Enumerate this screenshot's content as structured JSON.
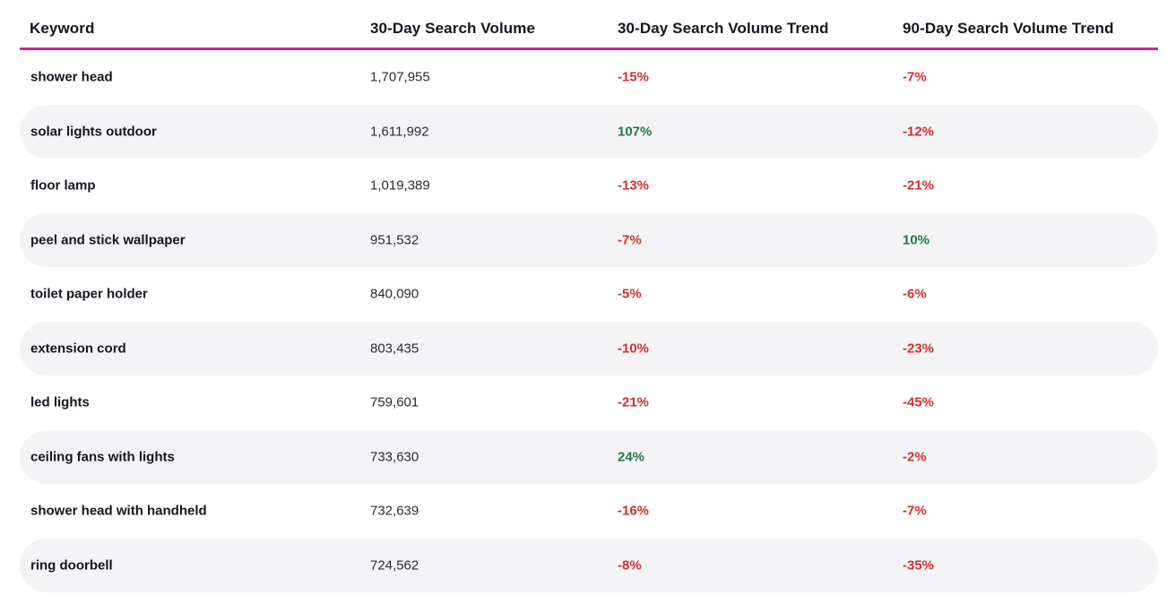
{
  "colors": {
    "header_rule": "#d6268e",
    "negative": "#d32f2f",
    "positive": "#1f7a4d",
    "row_stripe": "#f4f4f6"
  },
  "table": {
    "headers": {
      "keyword": "Keyword",
      "volume": "30-Day Search Volume",
      "trend30": "30-Day Search Volume Trend",
      "trend90": "90-Day Search Volume Trend"
    },
    "rows": [
      {
        "keyword": "shower head",
        "volume": "1,707,955",
        "trend30": "-15%",
        "trend90": "-7%"
      },
      {
        "keyword": "solar lights outdoor",
        "volume": "1,611,992",
        "trend30": "107%",
        "trend90": "-12%"
      },
      {
        "keyword": "floor lamp",
        "volume": "1,019,389",
        "trend30": "-13%",
        "trend90": "-21%"
      },
      {
        "keyword": "peel and stick wallpaper",
        "volume": "951,532",
        "trend30": "-7%",
        "trend90": "10%"
      },
      {
        "keyword": "toilet paper holder",
        "volume": "840,090",
        "trend30": "-5%",
        "trend90": "-6%"
      },
      {
        "keyword": "extension cord",
        "volume": "803,435",
        "trend30": "-10%",
        "trend90": "-23%"
      },
      {
        "keyword": "led lights",
        "volume": "759,601",
        "trend30": "-21%",
        "trend90": "-45%"
      },
      {
        "keyword": "ceiling fans with lights",
        "volume": "733,630",
        "trend30": "24%",
        "trend90": "-2%"
      },
      {
        "keyword": "shower head with handheld",
        "volume": "732,639",
        "trend30": "-16%",
        "trend90": "-7%"
      },
      {
        "keyword": "ring doorbell",
        "volume": "724,562",
        "trend30": "-8%",
        "trend90": "-35%"
      }
    ]
  }
}
